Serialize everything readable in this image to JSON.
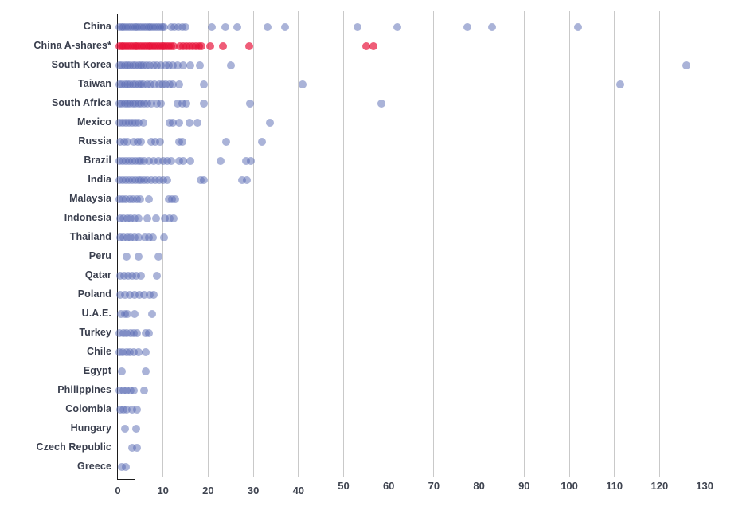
{
  "chart_data": {
    "type": "scatter",
    "variant": "horizontal-strip-dot-plot",
    "title": "",
    "xlabel": "",
    "ylabel": "",
    "xlim": [
      0,
      130
    ],
    "x_ticks": [
      0,
      10,
      20,
      30,
      40,
      50,
      60,
      70,
      80,
      90,
      100,
      110,
      120,
      130
    ],
    "grid": "vertical-on",
    "legend": "none",
    "colors": {
      "blue": "rgba(86,104,178,0.5)",
      "red": "rgba(232,16,56,0.68)"
    },
    "highlight_series": "China A-shares*",
    "categories": [
      "China",
      "China A-shares*",
      "South Korea",
      "Taiwan",
      "South Africa",
      "Mexico",
      "Russia",
      "Brazil",
      "India",
      "Malaysia",
      "Indonesia",
      "Thailand",
      "Peru",
      "Qatar",
      "Poland",
      "U.A.E.",
      "Turkey",
      "Chile",
      "Egypt",
      "Philippines",
      "Colombia",
      "Hungary",
      "Czech Republic",
      "Greece"
    ],
    "series": [
      {
        "name": "China",
        "color": "blue",
        "values": [
          0.3,
          0.8,
          1.3,
          1.8,
          2.3,
          2.8,
          3.3,
          3.8,
          4.3,
          4.8,
          5.3,
          5.8,
          6.3,
          6.8,
          7.3,
          7.8,
          8.3,
          8.8,
          9.3,
          9.8,
          10.3,
          11.8,
          12.6,
          13.4,
          14.2,
          15.0,
          20.8,
          23.8,
          26.4,
          33.2,
          37.0,
          53.1,
          61.9,
          77.4,
          82.9,
          101.9
        ]
      },
      {
        "name": "China A-shares*",
        "color": "red",
        "values": [
          0.3,
          0.8,
          1.3,
          1.8,
          2.3,
          2.8,
          3.3,
          3.8,
          4.3,
          4.8,
          5.3,
          5.8,
          6.3,
          6.8,
          7.3,
          7.8,
          8.3,
          8.8,
          9.3,
          9.8,
          10.3,
          10.8,
          11.3,
          11.8,
          12.3,
          13.8,
          14.5,
          15.2,
          15.9,
          16.6,
          17.3,
          18.0,
          18.6,
          20.4,
          23.2,
          29.1,
          55.0,
          56.6
        ]
      },
      {
        "name": "South Korea",
        "color": "blue",
        "values": [
          0.3,
          0.9,
          1.5,
          2.1,
          2.7,
          3.3,
          3.9,
          4.5,
          5.1,
          5.7,
          6.3,
          7.0,
          8.0,
          8.6,
          9.6,
          10.5,
          11.2,
          12.2,
          13.2,
          14.5,
          16.1,
          18.2,
          25.0,
          125.9
        ]
      },
      {
        "name": "Taiwan",
        "color": "blue",
        "values": [
          0.3,
          0.9,
          1.5,
          2.1,
          2.7,
          3.3,
          3.9,
          4.5,
          5.1,
          5.7,
          6.5,
          7.3,
          8.2,
          9.1,
          9.8,
          10.6,
          11.4,
          12.2,
          13.5,
          19.1,
          41.0,
          111.2
        ]
      },
      {
        "name": "South Africa",
        "color": "blue",
        "values": [
          0.3,
          0.9,
          1.5,
          2.1,
          2.7,
          3.3,
          3.9,
          4.5,
          5.1,
          5.8,
          6.6,
          7.4,
          8.7,
          9.5,
          13.2,
          14.2,
          15.1,
          19.0,
          29.3,
          58.4
        ]
      },
      {
        "name": "Mexico",
        "color": "blue",
        "values": [
          0.4,
          1.1,
          1.8,
          2.5,
          3.2,
          3.9,
          4.6,
          5.6,
          11.4,
          12.2,
          13.6,
          15.9,
          17.7,
          33.7
        ]
      },
      {
        "name": "Russia",
        "color": "blue",
        "values": [
          0.6,
          1.4,
          2.2,
          3.6,
          4.4,
          5.2,
          7.4,
          8.3,
          9.3,
          13.5,
          14.3,
          24.0,
          31.9
        ]
      },
      {
        "name": "Brazil",
        "color": "blue",
        "values": [
          0.3,
          1.0,
          1.7,
          2.4,
          3.1,
          3.8,
          4.5,
          5.2,
          5.9,
          6.9,
          7.9,
          9.0,
          10.0,
          10.9,
          11.9,
          13.5,
          14.4,
          16.1,
          22.8,
          28.4,
          29.4
        ]
      },
      {
        "name": "India",
        "color": "blue",
        "values": [
          0.3,
          1.0,
          1.7,
          2.4,
          3.1,
          3.8,
          4.5,
          5.2,
          5.9,
          6.6,
          7.4,
          8.3,
          9.2,
          10.1,
          10.9,
          18.3,
          19.0,
          27.5,
          28.6
        ]
      },
      {
        "name": "Malaysia",
        "color": "blue",
        "values": [
          0.3,
          1.0,
          1.8,
          2.6,
          3.4,
          4.2,
          5.0,
          6.9,
          11.3,
          12.0,
          12.7
        ]
      },
      {
        "name": "Indonesia",
        "color": "blue",
        "values": [
          0.5,
          1.3,
          2.1,
          2.9,
          3.7,
          4.6,
          6.6,
          8.4,
          10.4,
          11.4,
          12.3
        ]
      },
      {
        "name": "Thailand",
        "color": "blue",
        "values": [
          0.5,
          1.3,
          2.1,
          2.9,
          3.7,
          4.5,
          6.0,
          6.9,
          7.7,
          10.2
        ]
      },
      {
        "name": "Peru",
        "color": "blue",
        "values": [
          1.9,
          4.6,
          9.0
        ]
      },
      {
        "name": "Qatar",
        "color": "blue",
        "values": [
          0.5,
          1.4,
          2.3,
          3.1,
          4.1,
          5.2,
          8.7
        ]
      },
      {
        "name": "Poland",
        "color": "blue",
        "values": [
          0.5,
          1.5,
          2.6,
          3.7,
          4.8,
          5.8,
          7.0,
          7.9
        ]
      },
      {
        "name": "U.A.E.",
        "color": "blue",
        "values": [
          0.7,
          1.5,
          2.2,
          3.7,
          7.5
        ]
      },
      {
        "name": "Turkey",
        "color": "blue",
        "values": [
          0.4,
          1.2,
          2.0,
          2.8,
          3.6,
          4.3,
          6.1,
          6.8
        ]
      },
      {
        "name": "Chile",
        "color": "blue",
        "values": [
          0.4,
          1.1,
          1.9,
          2.7,
          3.5,
          4.6,
          6.1
        ]
      },
      {
        "name": "Egypt",
        "color": "blue",
        "values": [
          0.8,
          6.1
        ]
      },
      {
        "name": "Philippines",
        "color": "blue",
        "values": [
          0.4,
          1.2,
          2.0,
          2.9,
          3.6,
          5.8
        ]
      },
      {
        "name": "Colombia",
        "color": "blue",
        "values": [
          0.5,
          1.2,
          1.9,
          3.1,
          4.3
        ]
      },
      {
        "name": "Hungary",
        "color": "blue",
        "values": [
          1.6,
          4.1
        ]
      },
      {
        "name": "Czech Republic",
        "color": "blue",
        "values": [
          3.2,
          4.3
        ]
      },
      {
        "name": "Greece",
        "color": "blue",
        "values": [
          0.8,
          1.8
        ]
      }
    ]
  }
}
